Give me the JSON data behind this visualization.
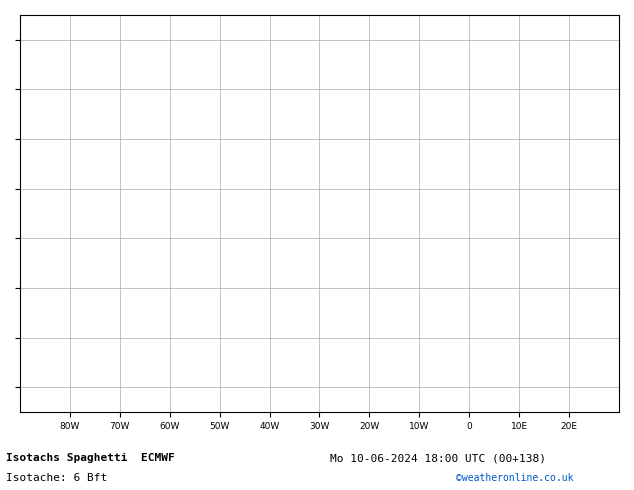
{
  "title_line1": "Isotachs Spaghetti  ECMWF",
  "title_line2": "Isotache: 6 Bft",
  "date_str": "Mo 10-06-2024 18:00 UTC (00+138)",
  "credit": "©weatheronline.co.uk",
  "bg_color": "#ffffff",
  "land_color": "#c8eea0",
  "ocean_color": "#ffffff",
  "grid_color": "#aaaaaa",
  "border_color": "#888888",
  "text_color": "#000000",
  "fig_width": 6.34,
  "fig_height": 4.9,
  "dpi": 100,
  "lon_min": -90,
  "lon_max": 30,
  "lat_min": -5,
  "lat_max": 75,
  "x_ticks": [
    -80,
    -70,
    -60,
    -50,
    -40,
    -30,
    -20,
    -10,
    0,
    10,
    20
  ],
  "x_tick_labels": [
    "80W",
    "70W",
    "60W",
    "50W",
    "40W",
    "30W",
    "20W",
    "10W",
    "0",
    "10E",
    "20E"
  ],
  "y_ticks": [
    0,
    10,
    20,
    30,
    40,
    50,
    60,
    70
  ],
  "label_fontsize": 6.5,
  "title_fontsize": 8,
  "credit_fontsize": 7,
  "contour_colors": [
    "#808080",
    "#ff00ff",
    "#ff8c00",
    "#00aa00",
    "#0000cc",
    "#ff0000",
    "#00cccc",
    "#cccc00",
    "#8800cc",
    "#00cc88",
    "#ff88cc",
    "#888800",
    "#0088ff",
    "#ff4488"
  ],
  "num_members": 51
}
